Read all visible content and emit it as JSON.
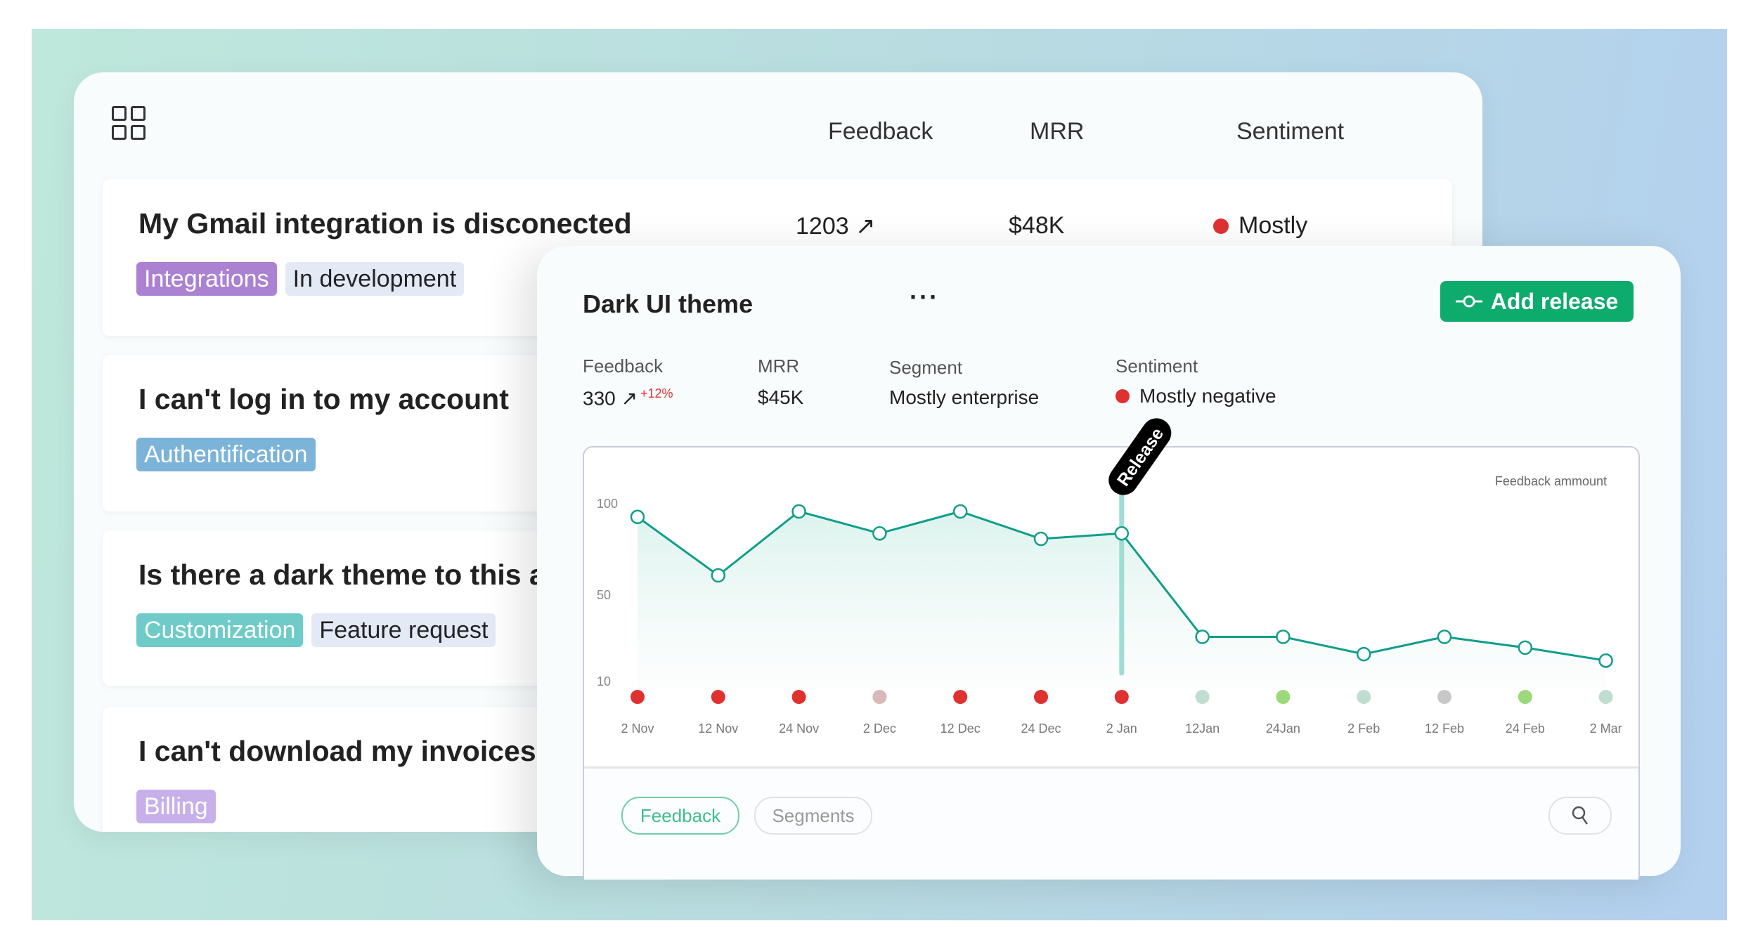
{
  "list": {
    "headers": [
      "Feedback",
      "MRR",
      "Sentiment"
    ],
    "rows": [
      {
        "title": "My Gmail integration is disconected",
        "tags": [
          {
            "label": "Integrations",
            "bg": "#ab82d1",
            "fg": "#ffffff"
          },
          {
            "label": "In development",
            "bg": "#e3eaf5",
            "fg": "#222222"
          }
        ],
        "feedback": "1203 ↗",
        "mrr": "$48K",
        "sentiment": "Mostly",
        "sentiment_color": "#e03131"
      },
      {
        "title": "I can't log in to my account",
        "tags": [
          {
            "label": "Authentification",
            "bg": "#7cb3d8",
            "fg": "#ffffff"
          }
        ]
      },
      {
        "title": "Is there a dark theme to this app?",
        "tags": [
          {
            "label": "Customization",
            "bg": "#6fcbc8",
            "fg": "#ffffff"
          },
          {
            "label": "Feature request",
            "bg": "#e3eaf5",
            "fg": "#222222"
          }
        ]
      },
      {
        "title": "I can't download my invoices",
        "tags": [
          {
            "label": "Billing",
            "bg": "#c7b0ea",
            "fg": "#ffffff"
          }
        ]
      }
    ]
  },
  "detail": {
    "title": "Dark UI theme",
    "more": "···",
    "add_release": "Add release",
    "accent": "#0dab6c",
    "stats": {
      "feedback_label": "Feedback",
      "feedback_value": "330 ↗",
      "feedback_change": "+12%",
      "mrr_label": "MRR",
      "mrr_value": "$45K",
      "segment_label": "Segment",
      "segment_value": "Mostly enterprise",
      "sentiment_label": "Sentiment",
      "sentiment_value": "Mostly negative",
      "sentiment_color": "#e03131"
    },
    "tabs": [
      "Feedback",
      "Segments"
    ],
    "active_tab": "Feedback"
  },
  "chart_data": {
    "type": "line",
    "legend": "Feedback ammount",
    "legend_placement": "top-right",
    "y_ticks": [
      100,
      50,
      10
    ],
    "x": [
      "2 Nov",
      "12 Nov",
      "24 Nov",
      "2 Dec",
      "12 Dec",
      "24 Dec",
      "2 Jan",
      "12Jan",
      "24Jan",
      "2 Feb",
      "12 Feb",
      "24 Feb",
      "2 Mar"
    ],
    "values": [
      92,
      60,
      95,
      83,
      95,
      80,
      83,
      30,
      30,
      22,
      30,
      25,
      19
    ],
    "sentiment_colors": [
      "#e03131",
      "#e03131",
      "#e03131",
      "#d8b8b8",
      "#e03131",
      "#e03131",
      "#e03131",
      "#c0ddd1",
      "#9bd97a",
      "#c0ddd1",
      "#c8c8c8",
      "#9bd97a",
      "#c0ddd1"
    ],
    "annotation": {
      "label": "Release",
      "x": "2 Jan"
    },
    "line_color": "#0f9e8a"
  }
}
